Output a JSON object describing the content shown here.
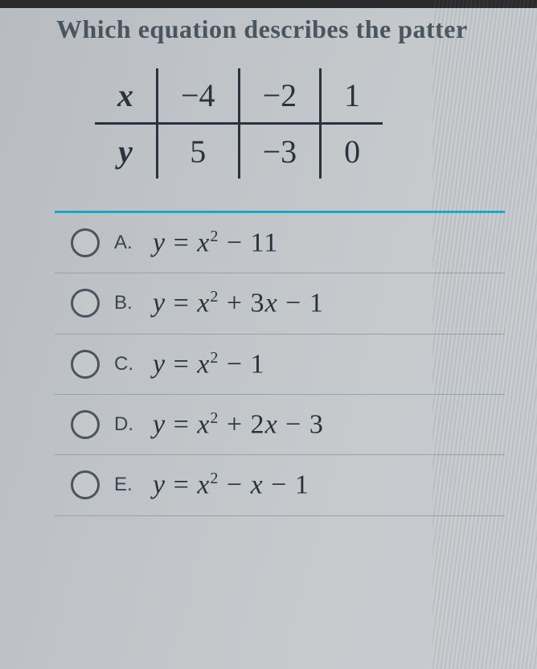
{
  "question": "Which equation describes the patter",
  "table": {
    "row_headers": [
      "x",
      "y"
    ],
    "x_vals": [
      "−4",
      "−2",
      "1"
    ],
    "y_vals": [
      "5",
      "−3",
      "0"
    ]
  },
  "options": [
    {
      "letter": "A.",
      "equation_html": "<i>y</i> <span class='n'>=</span> <i>x</i><sup>2</sup> <span class='n'>− 11</span>"
    },
    {
      "letter": "B.",
      "equation_html": "<i>y</i> <span class='n'>=</span> <i>x</i><sup>2</sup> <span class='n'>+ 3</span><i>x</i> <span class='n'>− 1</span>"
    },
    {
      "letter": "C.",
      "equation_html": "<i>y</i> <span class='n'>=</span> <i>x</i><sup>2</sup> <span class='n'>− 1</span>"
    },
    {
      "letter": "D.",
      "equation_html": "<i>y</i> <span class='n'>=</span> <i>x</i><sup>2</sup> <span class='n'>+ 2</span><i>x</i> <span class='n'>− 3</span>"
    },
    {
      "letter": "E.",
      "equation_html": "<i>y</i> <span class='n'>=</span> <i>x</i><sup>2</sup> <span class='n'>−</span> <i>x</i> <span class='n'>− 1</span>"
    }
  ],
  "colors": {
    "accent": "#2fa0b8",
    "text": "#2a333d",
    "muted": "#4a5560",
    "divider": "#98a2aa"
  }
}
